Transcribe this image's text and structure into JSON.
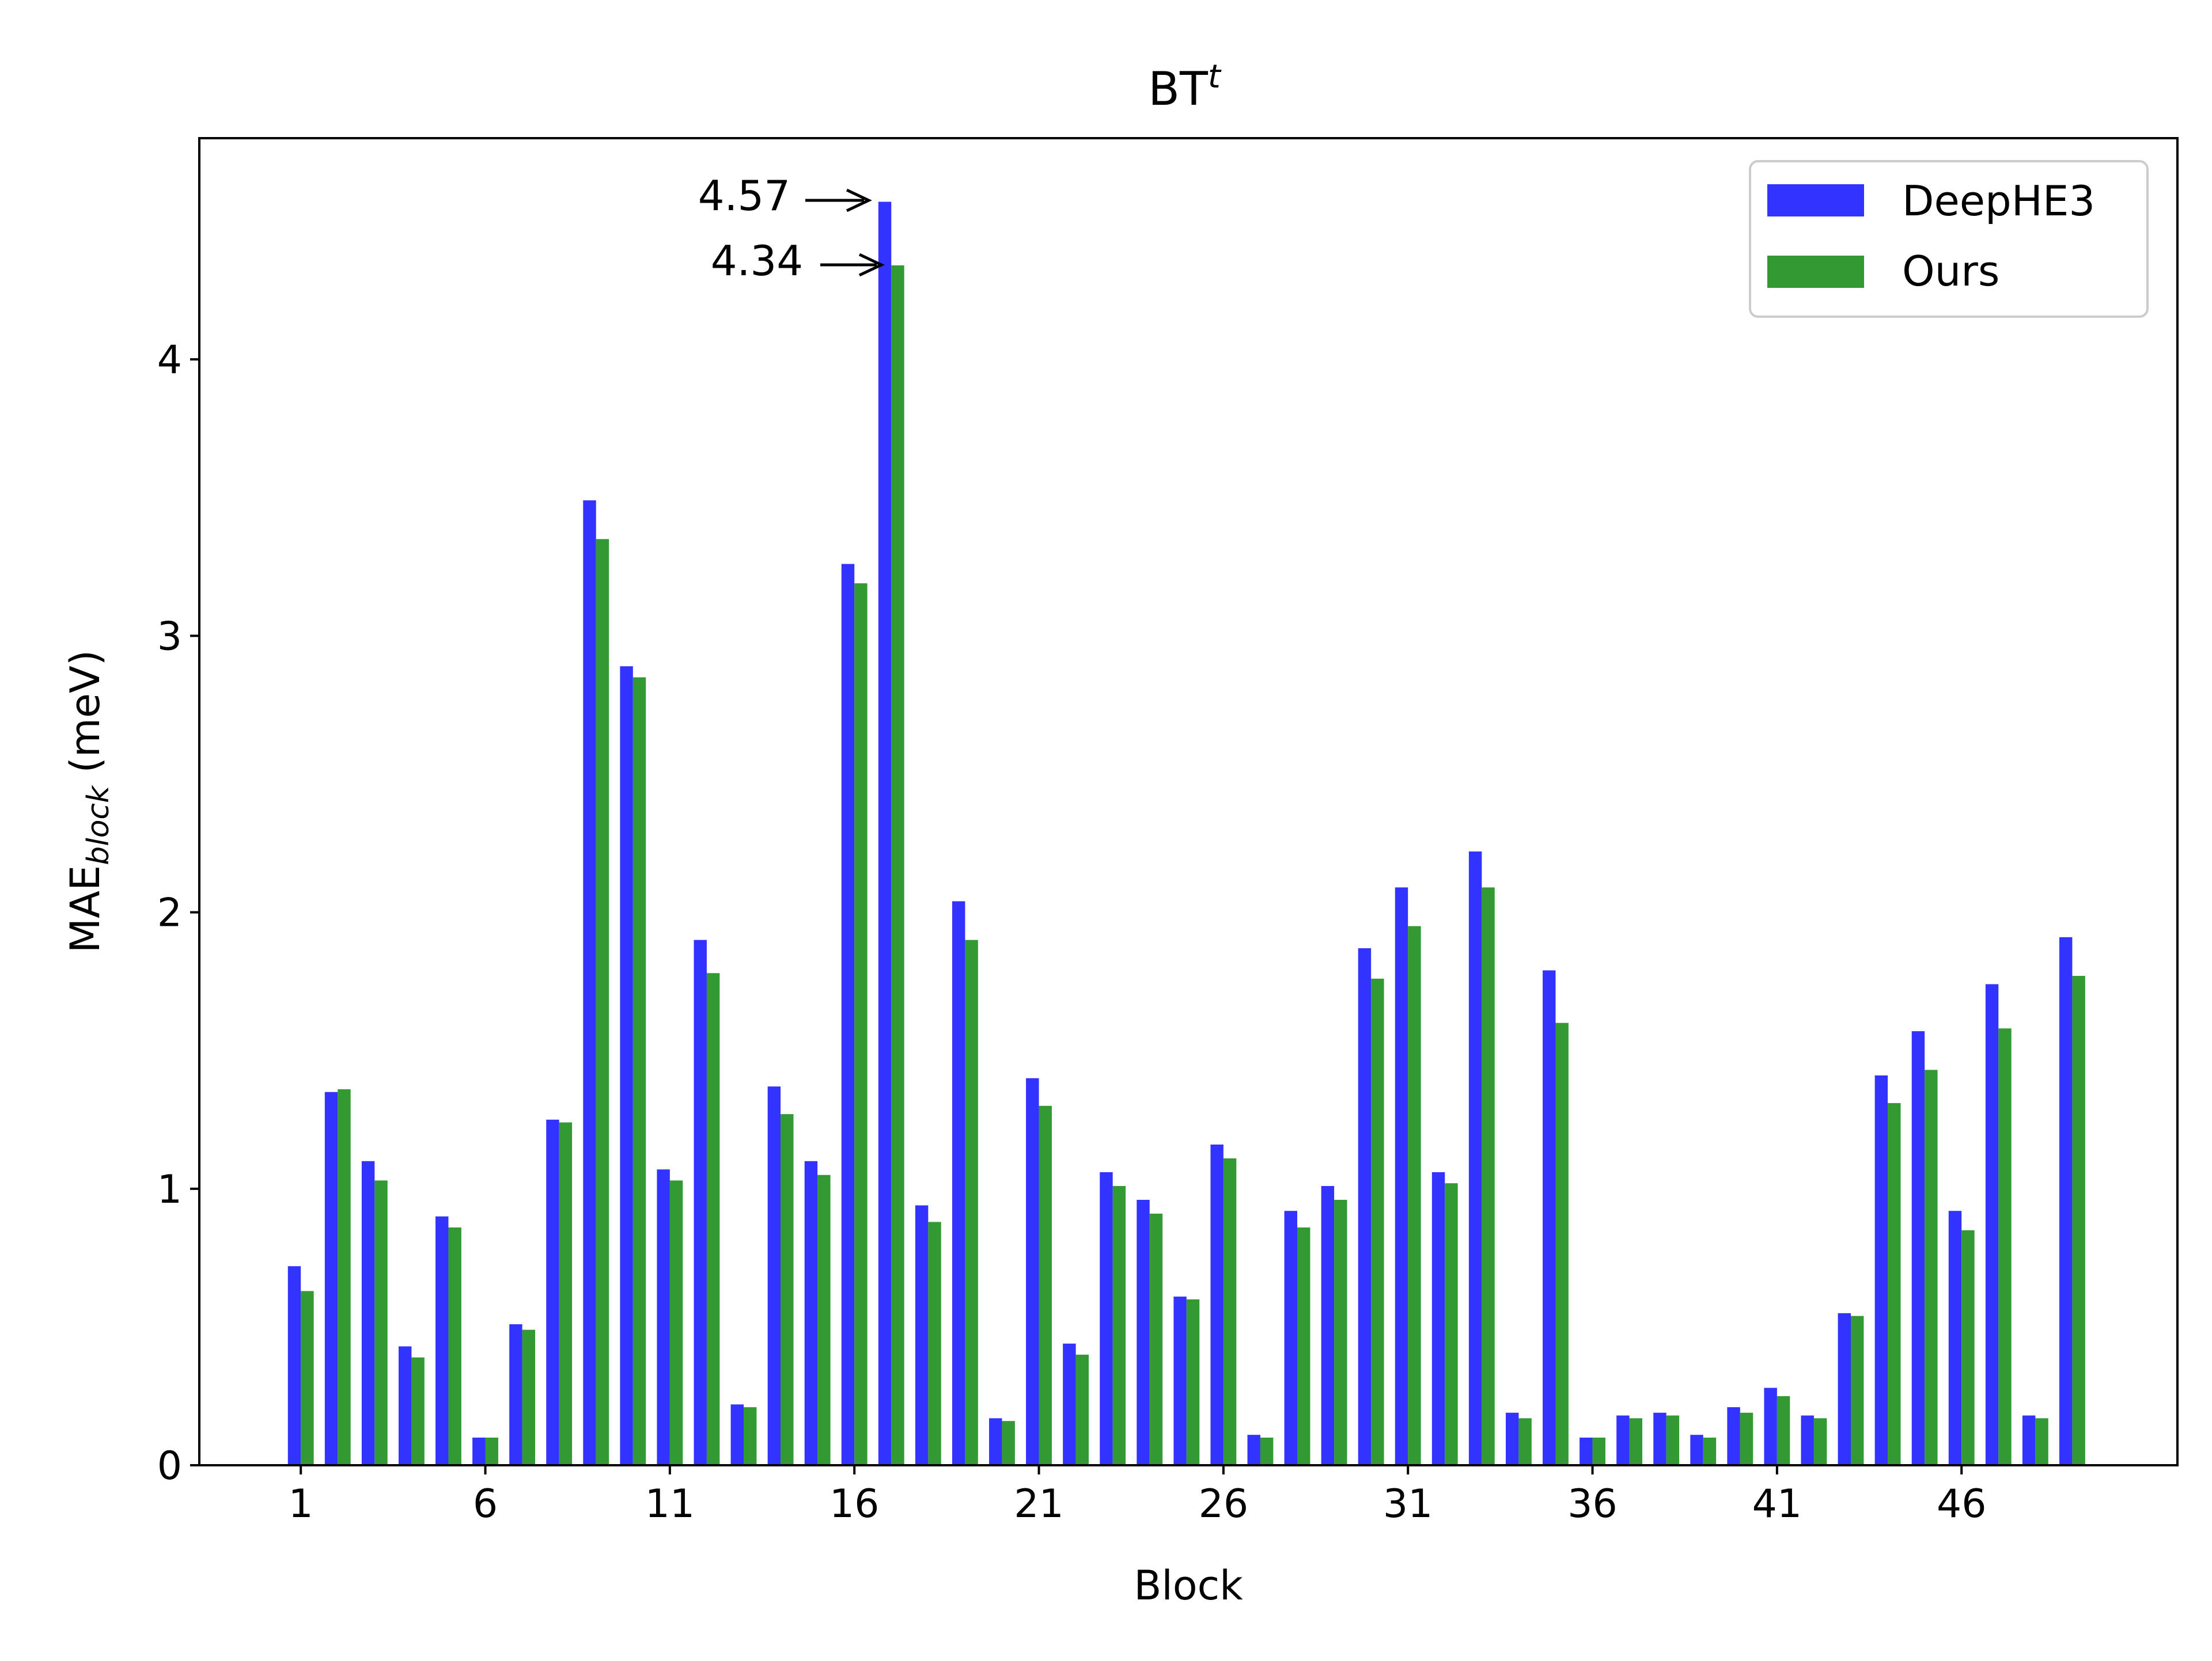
{
  "chart_data": {
    "type": "bar",
    "title_main": "BT",
    "title_sup": "t",
    "xlabel": "Block",
    "ylabel_main": "MAE",
    "ylabel_sub": "block",
    "ylabel_unit": " (meV)",
    "ylim": [
      0,
      4.8
    ],
    "yticks": [
      0,
      1,
      2,
      3,
      4
    ],
    "xticks": [
      1,
      6,
      11,
      16,
      21,
      26,
      31,
      36,
      41,
      46
    ],
    "xlim": [
      -1.75,
      51.85
    ],
    "grid": false,
    "legend_position": "top-right",
    "categories": [
      1,
      2,
      3,
      4,
      5,
      6,
      7,
      8,
      9,
      10,
      11,
      12,
      13,
      14,
      15,
      16,
      17,
      18,
      19,
      20,
      21,
      22,
      23,
      24,
      25,
      26,
      27,
      28,
      29,
      30,
      31,
      32,
      33,
      34,
      35,
      36,
      37,
      38,
      39,
      40,
      41,
      42,
      43,
      44,
      45,
      46,
      47,
      48,
      49
    ],
    "series": [
      {
        "name": "DeepHE3",
        "color": "#3333ff",
        "values": [
          0.72,
          1.35,
          1.1,
          0.43,
          0.9,
          0.1,
          0.51,
          1.25,
          3.49,
          2.89,
          1.07,
          1.9,
          0.22,
          1.37,
          1.1,
          3.26,
          4.57,
          0.94,
          2.04,
          0.17,
          1.4,
          0.44,
          1.06,
          0.96,
          0.61,
          1.16,
          0.11,
          0.92,
          1.01,
          1.87,
          2.09,
          1.06,
          2.22,
          0.19,
          1.79,
          0.1,
          0.18,
          0.19,
          0.11,
          0.21,
          0.28,
          0.18,
          0.55,
          1.41,
          1.57,
          0.92,
          1.74,
          0.18,
          1.91
        ]
      },
      {
        "name": "Ours",
        "color": "#339933",
        "values": [
          0.63,
          1.36,
          1.03,
          0.39,
          0.86,
          0.1,
          0.49,
          1.24,
          3.35,
          2.85,
          1.03,
          1.78,
          0.21,
          1.27,
          1.05,
          3.19,
          4.34,
          0.88,
          1.9,
          0.16,
          1.3,
          0.4,
          1.01,
          0.91,
          0.6,
          1.11,
          0.1,
          0.86,
          0.96,
          1.76,
          1.95,
          1.02,
          2.09,
          0.17,
          1.6,
          0.1,
          0.17,
          0.18,
          0.1,
          0.19,
          0.25,
          0.17,
          0.54,
          1.31,
          1.43,
          0.85,
          1.58,
          0.17,
          1.77
        ]
      }
    ],
    "annotations": [
      {
        "text": "4.57",
        "target_block": 17,
        "series": "DeepHE3"
      },
      {
        "text": "4.34",
        "target_block": 17,
        "series": "Ours"
      }
    ]
  }
}
